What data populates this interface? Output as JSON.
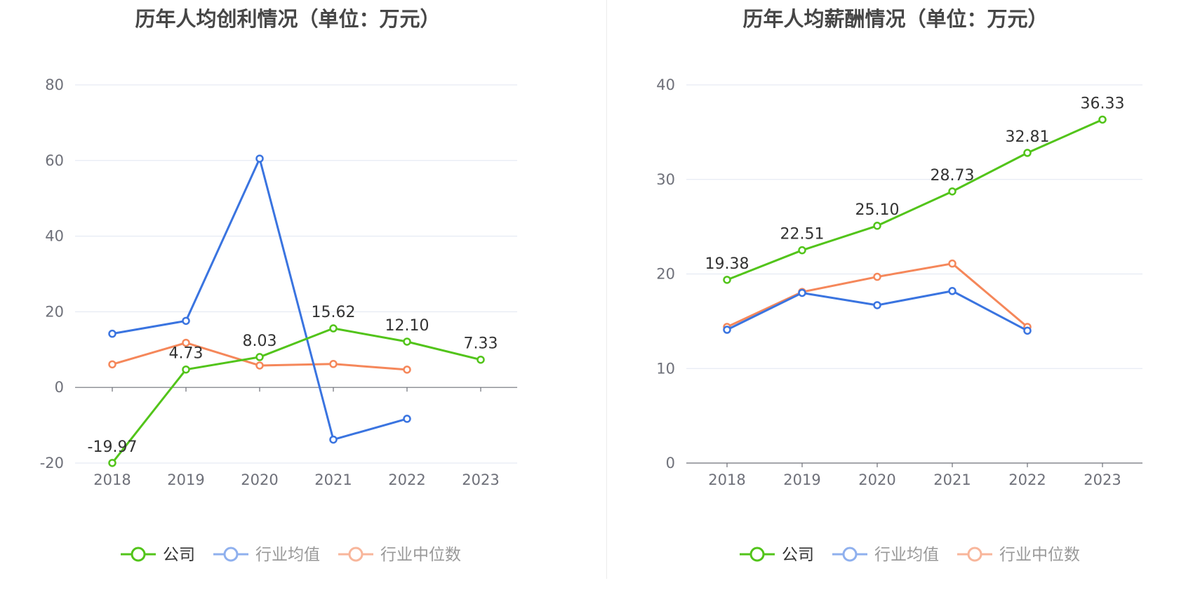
{
  "chart_data": [
    {
      "type": "line",
      "title": "历年人均创利情况（单位：万元）",
      "xlabel": "",
      "ylabel": "",
      "categories": [
        "2018",
        "2019",
        "2020",
        "2021",
        "2022",
        "2023"
      ],
      "ylim": [
        -20,
        80
      ],
      "yticks": [
        -20,
        0,
        20,
        40,
        60,
        80
      ],
      "series": [
        {
          "name": "公司",
          "color": "#52c41a",
          "values": [
            -19.97,
            4.73,
            8.03,
            15.62,
            12.1,
            7.33
          ],
          "labels": [
            "-19.97",
            "4.73",
            "8.03",
            "15.62",
            "12.10",
            "7.33"
          ]
        },
        {
          "name": "行业均值",
          "color": "#3a74e0",
          "values": [
            14.2,
            17.6,
            60.5,
            -13.8,
            -8.3,
            null
          ]
        },
        {
          "name": "行业中位数",
          "color": "#f5875a",
          "values": [
            6.1,
            11.8,
            5.8,
            6.2,
            4.7,
            null
          ]
        }
      ]
    },
    {
      "type": "line",
      "title": "历年人均薪酬情况（单位：万元）",
      "xlabel": "",
      "ylabel": "",
      "categories": [
        "2018",
        "2019",
        "2020",
        "2021",
        "2022",
        "2023"
      ],
      "ylim": [
        0,
        40
      ],
      "yticks": [
        0,
        10,
        20,
        30,
        40
      ],
      "series": [
        {
          "name": "公司",
          "color": "#52c41a",
          "values": [
            19.38,
            22.51,
            25.1,
            28.73,
            32.81,
            36.33
          ],
          "labels": [
            "19.38",
            "22.51",
            "25.10",
            "28.73",
            "32.81",
            "36.33"
          ]
        },
        {
          "name": "行业均值",
          "color": "#3a74e0",
          "values": [
            14.1,
            18.0,
            16.7,
            18.2,
            14.0,
            null
          ]
        },
        {
          "name": "行业中位数",
          "color": "#f5875a",
          "values": [
            14.4,
            18.1,
            19.7,
            21.1,
            14.4,
            null
          ]
        }
      ]
    }
  ],
  "legend": [
    {
      "name": "公司",
      "color": "#52c41a",
      "text_color": "#333333"
    },
    {
      "name": "行业均值",
      "color": "#8fb0ee",
      "text_color": "#999999"
    },
    {
      "name": "行业中位数",
      "color": "#f8b69b",
      "text_color": "#999999"
    }
  ]
}
